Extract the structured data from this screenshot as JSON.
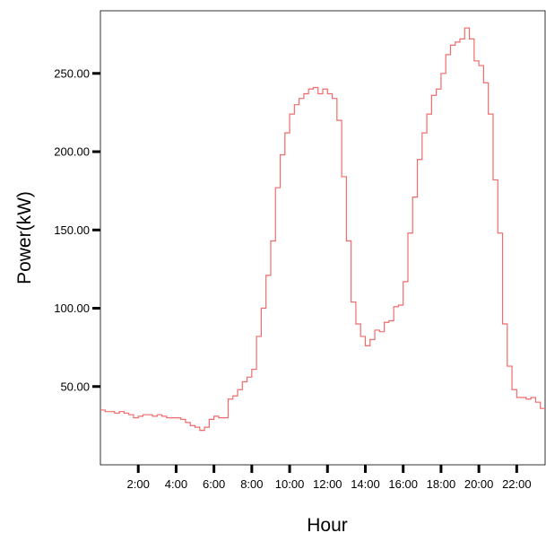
{
  "chart_data": {
    "type": "line",
    "title": "",
    "xlabel": "Hour",
    "ylabel": "Power(kW)",
    "x_ticks": [
      "2:00",
      "4:00",
      "6:00",
      "8:00",
      "10:00",
      "12:00",
      "14:00",
      "16:00",
      "18:00",
      "20:00",
      "22:00"
    ],
    "y_ticks": [
      "50.00",
      "100.00",
      "150.00",
      "200.00",
      "250.00"
    ],
    "xlim": [
      0,
      23.5
    ],
    "ylim": [
      0,
      290
    ],
    "line_color": "#f26b6b",
    "series": [
      {
        "x": [
          0.0,
          0.25,
          0.5,
          0.75,
          1.0,
          1.25,
          1.5,
          1.75,
          2.0,
          2.25,
          2.5,
          2.75,
          3.0,
          3.25,
          3.5,
          3.75,
          4.0,
          4.25,
          4.5,
          4.75,
          5.0,
          5.25,
          5.5,
          5.75,
          6.0,
          6.25,
          6.5,
          6.75,
          7.0,
          7.25,
          7.5,
          7.75,
          8.0,
          8.25,
          8.5,
          8.75,
          9.0,
          9.25,
          9.5,
          9.75,
          10.0,
          10.25,
          10.5,
          10.75,
          11.0,
          11.25,
          11.5,
          11.75,
          12.0,
          12.25,
          12.5,
          12.75,
          13.0,
          13.25,
          13.5,
          13.75,
          14.0,
          14.25,
          14.5,
          14.75,
          15.0,
          15.25,
          15.5,
          15.75,
          16.0,
          16.25,
          16.5,
          16.75,
          17.0,
          17.25,
          17.5,
          17.75,
          18.0,
          18.25,
          18.5,
          18.75,
          19.0,
          19.25,
          19.5,
          19.75,
          20.0,
          20.25,
          20.5,
          20.75,
          21.0,
          21.25,
          21.5,
          21.75,
          22.0,
          22.25,
          22.5,
          22.75,
          23.0,
          23.25
        ],
        "y": [
          35,
          34,
          34,
          33,
          34,
          33,
          32,
          30,
          31,
          32,
          32,
          31,
          32,
          31,
          30,
          30,
          30,
          29,
          27,
          25,
          24,
          22,
          24,
          29,
          31,
          30,
          30,
          42,
          44,
          48,
          53,
          56,
          61,
          82,
          100,
          121,
          143,
          177,
          198,
          212,
          224,
          230,
          234,
          237,
          240,
          241,
          237,
          240,
          237,
          234,
          220,
          184,
          143,
          104,
          90,
          82,
          76,
          80,
          86,
          85,
          91,
          92,
          101,
          102,
          117,
          148,
          171,
          195,
          212,
          224,
          236,
          240,
          250,
          262,
          268,
          270,
          272,
          279,
          272,
          258,
          255,
          244,
          224,
          182,
          148,
          90,
          63,
          48,
          43,
          43,
          42,
          43,
          40,
          36
        ]
      }
    ]
  }
}
